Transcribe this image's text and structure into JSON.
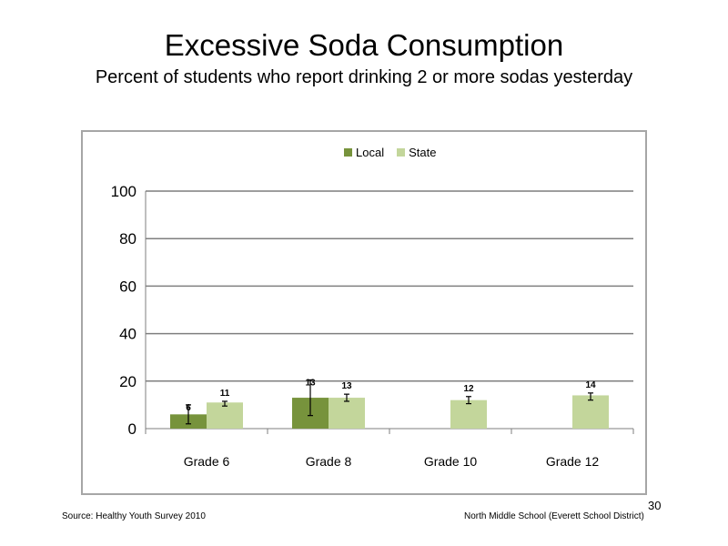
{
  "slide": {
    "title": "Excessive  Soda  Consumption",
    "subtitle": "Percent  of students  who  report drinking  2  or more sodas yesterday",
    "source": "Source: Healthy  Youth Survey 2010",
    "school": "North Middle  School (Everett School District)",
    "page_number": "30"
  },
  "colors": {
    "local": "#77933c",
    "state": "#c3d69b",
    "gridline": "#7f7f7f",
    "frame": "#a6a6a6"
  },
  "chart_data": {
    "type": "bar",
    "categories": [
      "Grade 6",
      "Grade 8",
      "Grade 10",
      "Grade 12"
    ],
    "series": [
      {
        "name": "Local",
        "values": [
          6,
          13,
          null,
          null
        ],
        "labels": [
          "6",
          "13",
          "",
          ""
        ],
        "error_low": [
          2,
          5.5,
          null,
          null
        ],
        "error_high": [
          10,
          20.5,
          null,
          null
        ]
      },
      {
        "name": "State",
        "values": [
          11,
          13,
          12,
          14
        ],
        "labels": [
          "11",
          "13",
          "12",
          "14"
        ],
        "error_low": [
          9.5,
          11.5,
          10.5,
          12
        ],
        "error_high": [
          11.5,
          14.5,
          13.5,
          15
        ]
      }
    ],
    "yticks": [
      "0",
      "20",
      "40",
      "60",
      "80",
      "100"
    ],
    "ylim": [
      0,
      100
    ],
    "grid": true,
    "legend": "top-center"
  }
}
